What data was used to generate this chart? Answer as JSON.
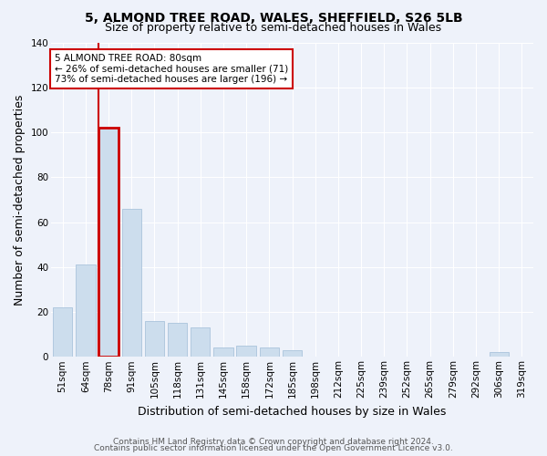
{
  "title": "5, ALMOND TREE ROAD, WALES, SHEFFIELD, S26 5LB",
  "subtitle": "Size of property relative to semi-detached houses in Wales",
  "xlabel": "Distribution of semi-detached houses by size in Wales",
  "ylabel": "Number of semi-detached properties",
  "annotation_line1": "5 ALMOND TREE ROAD: 80sqm",
  "annotation_line2": "← 26% of semi-detached houses are smaller (71)",
  "annotation_line3": "73% of semi-detached houses are larger (196) →",
  "footer_line1": "Contains HM Land Registry data © Crown copyright and database right 2024.",
  "footer_line2": "Contains public sector information licensed under the Open Government Licence v3.0.",
  "categories": [
    "51sqm",
    "64sqm",
    "78sqm",
    "91sqm",
    "105sqm",
    "118sqm",
    "131sqm",
    "145sqm",
    "158sqm",
    "172sqm",
    "185sqm",
    "198sqm",
    "212sqm",
    "225sqm",
    "239sqm",
    "252sqm",
    "265sqm",
    "279sqm",
    "292sqm",
    "306sqm",
    "319sqm"
  ],
  "values": [
    22,
    41,
    102,
    66,
    16,
    15,
    13,
    4,
    5,
    4,
    3,
    0,
    0,
    0,
    0,
    0,
    0,
    0,
    0,
    2,
    0
  ],
  "bar_color": "#ccdded",
  "bar_edge_color": "#aac4dc",
  "highlight_bar_index": 2,
  "highlight_edge_color": "#cc0000",
  "annotation_box_edge_color": "#cc0000",
  "ylim": [
    0,
    140
  ],
  "yticks": [
    0,
    20,
    40,
    60,
    80,
    100,
    120,
    140
  ],
  "background_color": "#eef2fa",
  "plot_background": "#eef2fa",
  "grid_color": "#ffffff",
  "title_fontsize": 10,
  "subtitle_fontsize": 9,
  "axis_label_fontsize": 9,
  "tick_fontsize": 7.5,
  "annotation_fontsize": 7.5,
  "footer_fontsize": 6.5
}
